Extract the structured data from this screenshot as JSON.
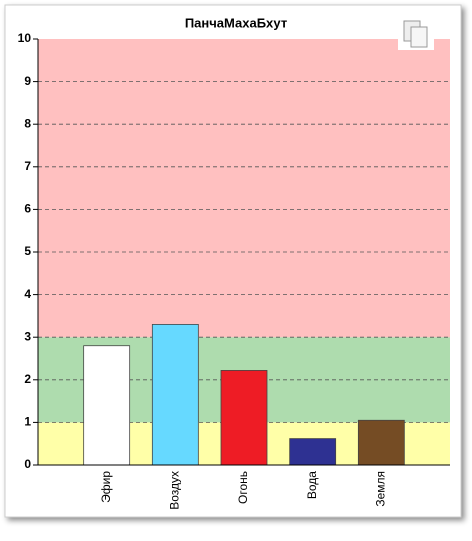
{
  "chart_data": {
    "type": "bar",
    "title": "ПанчаМахаБхут",
    "categories": [
      "Эфир",
      "Воздух",
      "Огонь",
      "Вода",
      "Земля"
    ],
    "values": [
      2.8,
      3.3,
      2.22,
      0.62,
      1.05
    ],
    "colors": [
      "#ffffff",
      "#66d9ff",
      "#ee1c25",
      "#2e3192",
      "#754c24"
    ],
    "bands": [
      {
        "from": 0,
        "to": 1,
        "color": "#ffffa8"
      },
      {
        "from": 1,
        "to": 3,
        "color": "#aedcae"
      },
      {
        "from": 3,
        "to": 10,
        "color": "#ffc0c0"
      }
    ],
    "ylim": [
      0,
      10
    ],
    "yticks": [
      0,
      1,
      2,
      3,
      4,
      5,
      6,
      7,
      8,
      9,
      10
    ],
    "grid": true
  }
}
